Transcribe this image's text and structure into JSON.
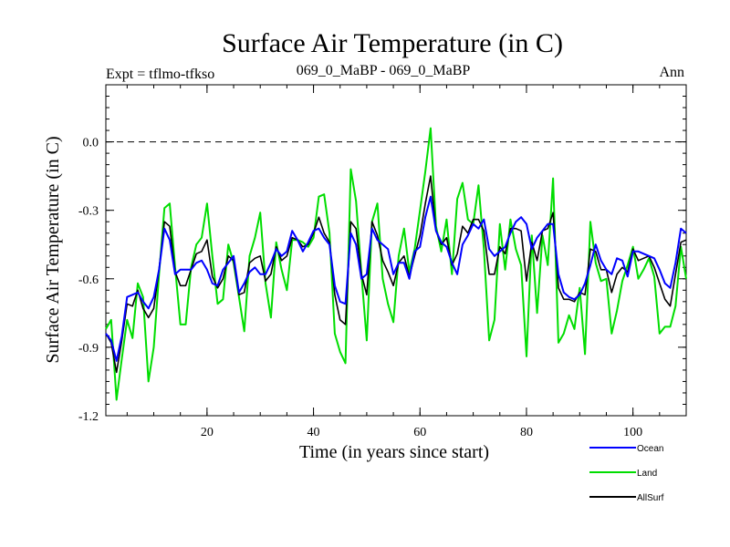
{
  "chart_data": {
    "type": "line",
    "title": "Surface Air Temperature (in C)",
    "subtitle_left": "Expt = tflmo-tfkso",
    "subtitle_center": "069_0_MaBP - 069_0_MaBP",
    "subtitle_right": "Ann",
    "xlabel": "Time (in years since start)",
    "ylabel": "Surface Air Temperature (in C)",
    "xlim": [
      1,
      110
    ],
    "ylim": [
      -1.2,
      0.25
    ],
    "xticks": [
      20,
      40,
      60,
      80,
      100
    ],
    "yticks": [
      0.0,
      -0.3,
      -0.6,
      -0.9,
      -1.2
    ],
    "ytick_labels": [
      "0.0",
      "-0.3",
      "-0.6",
      "-0.9",
      "-1.2"
    ],
    "reference_line": 0.0,
    "legend_position": "bottom-right",
    "x": [
      1,
      2,
      3,
      4,
      5,
      6,
      7,
      8,
      9,
      10,
      11,
      12,
      13,
      14,
      15,
      16,
      17,
      18,
      19,
      20,
      21,
      22,
      23,
      24,
      25,
      26,
      27,
      28,
      29,
      30,
      31,
      32,
      33,
      34,
      35,
      36,
      37,
      38,
      39,
      40,
      41,
      42,
      43,
      44,
      45,
      46,
      47,
      48,
      49,
      50,
      51,
      52,
      53,
      54,
      55,
      56,
      57,
      58,
      59,
      60,
      61,
      62,
      63,
      64,
      65,
      66,
      67,
      68,
      69,
      70,
      71,
      72,
      73,
      74,
      75,
      76,
      77,
      78,
      79,
      80,
      81,
      82,
      83,
      84,
      85,
      86,
      87,
      88,
      89,
      90,
      91,
      92,
      93,
      94,
      95,
      96,
      97,
      98,
      99,
      100,
      101,
      102,
      103,
      104,
      105,
      106,
      107,
      108,
      109,
      110
    ],
    "series": [
      {
        "name": "Ocean",
        "color": "#0000ff",
        "values": [
          -0.84,
          -0.87,
          -0.96,
          -0.85,
          -0.68,
          -0.67,
          -0.66,
          -0.7,
          -0.73,
          -0.68,
          -0.56,
          -0.38,
          -0.43,
          -0.58,
          -0.56,
          -0.56,
          -0.56,
          -0.53,
          -0.52,
          -0.56,
          -0.62,
          -0.63,
          -0.56,
          -0.53,
          -0.5,
          -0.66,
          -0.62,
          -0.57,
          -0.55,
          -0.58,
          -0.58,
          -0.53,
          -0.47,
          -0.5,
          -0.48,
          -0.39,
          -0.43,
          -0.48,
          -0.44,
          -0.39,
          -0.38,
          -0.42,
          -0.45,
          -0.63,
          -0.7,
          -0.71,
          -0.4,
          -0.45,
          -0.6,
          -0.58,
          -0.38,
          -0.43,
          -0.45,
          -0.47,
          -0.58,
          -0.53,
          -0.53,
          -0.6,
          -0.48,
          -0.46,
          -0.33,
          -0.24,
          -0.39,
          -0.44,
          -0.46,
          -0.53,
          -0.58,
          -0.45,
          -0.41,
          -0.36,
          -0.38,
          -0.34,
          -0.47,
          -0.5,
          -0.48,
          -0.46,
          -0.4,
          -0.35,
          -0.33,
          -0.36,
          -0.47,
          -0.42,
          -0.39,
          -0.36,
          -0.36,
          -0.58,
          -0.66,
          -0.68,
          -0.69,
          -0.67,
          -0.62,
          -0.54,
          -0.45,
          -0.52,
          -0.56,
          -0.58,
          -0.51,
          -0.52,
          -0.59,
          -0.48,
          -0.48,
          -0.49,
          -0.5,
          -0.51,
          -0.56,
          -0.62,
          -0.64,
          -0.53,
          -0.38,
          -0.4
        ]
      },
      {
        "name": "Land",
        "color": "#00dd00",
        "values": [
          -0.82,
          -0.78,
          -1.13,
          -0.95,
          -0.78,
          -0.86,
          -0.62,
          -0.68,
          -1.05,
          -0.9,
          -0.58,
          -0.29,
          -0.27,
          -0.55,
          -0.8,
          -0.8,
          -0.55,
          -0.45,
          -0.42,
          -0.27,
          -0.5,
          -0.71,
          -0.69,
          -0.45,
          -0.53,
          -0.68,
          -0.83,
          -0.5,
          -0.42,
          -0.31,
          -0.62,
          -0.77,
          -0.44,
          -0.56,
          -0.65,
          -0.43,
          -0.43,
          -0.44,
          -0.46,
          -0.42,
          -0.24,
          -0.23,
          -0.4,
          -0.84,
          -0.92,
          -0.97,
          -0.12,
          -0.26,
          -0.58,
          -0.87,
          -0.35,
          -0.27,
          -0.6,
          -0.71,
          -0.79,
          -0.5,
          -0.38,
          -0.57,
          -0.47,
          -0.3,
          -0.13,
          0.06,
          -0.37,
          -0.48,
          -0.34,
          -0.58,
          -0.25,
          -0.18,
          -0.34,
          -0.36,
          -0.19,
          -0.47,
          -0.87,
          -0.78,
          -0.36,
          -0.56,
          -0.34,
          -0.47,
          -0.54,
          -0.94,
          -0.41,
          -0.75,
          -0.41,
          -0.54,
          -0.16,
          -0.88,
          -0.84,
          -0.76,
          -0.82,
          -0.64,
          -0.93,
          -0.35,
          -0.53,
          -0.61,
          -0.6,
          -0.84,
          -0.74,
          -0.61,
          -0.54,
          -0.46,
          -0.6,
          -0.56,
          -0.51,
          -0.59,
          -0.84,
          -0.81,
          -0.81,
          -0.72,
          -0.46,
          -0.6
        ]
      },
      {
        "name": "AllSurf",
        "color": "#000000",
        "values": [
          -0.84,
          -0.88,
          -1.01,
          -0.87,
          -0.71,
          -0.72,
          -0.65,
          -0.73,
          -0.77,
          -0.73,
          -0.56,
          -0.35,
          -0.37,
          -0.57,
          -0.63,
          -0.63,
          -0.56,
          -0.49,
          -0.48,
          -0.43,
          -0.59,
          -0.64,
          -0.6,
          -0.5,
          -0.52,
          -0.67,
          -0.66,
          -0.53,
          -0.51,
          -0.5,
          -0.61,
          -0.58,
          -0.46,
          -0.52,
          -0.5,
          -0.42,
          -0.43,
          -0.46,
          -0.45,
          -0.4,
          -0.33,
          -0.4,
          -0.44,
          -0.67,
          -0.78,
          -0.8,
          -0.35,
          -0.38,
          -0.58,
          -0.67,
          -0.35,
          -0.41,
          -0.52,
          -0.57,
          -0.63,
          -0.53,
          -0.5,
          -0.59,
          -0.5,
          -0.41,
          -0.27,
          -0.15,
          -0.39,
          -0.45,
          -0.42,
          -0.54,
          -0.49,
          -0.37,
          -0.4,
          -0.34,
          -0.34,
          -0.39,
          -0.58,
          -0.58,
          -0.46,
          -0.49,
          -0.38,
          -0.38,
          -0.39,
          -0.61,
          -0.44,
          -0.52,
          -0.39,
          -0.38,
          -0.31,
          -0.64,
          -0.69,
          -0.69,
          -0.7,
          -0.66,
          -0.67,
          -0.47,
          -0.48,
          -0.56,
          -0.56,
          -0.66,
          -0.58,
          -0.55,
          -0.57,
          -0.47,
          -0.52,
          -0.51,
          -0.5,
          -0.55,
          -0.62,
          -0.69,
          -0.72,
          -0.58,
          -0.44,
          -0.43
        ]
      }
    ]
  }
}
